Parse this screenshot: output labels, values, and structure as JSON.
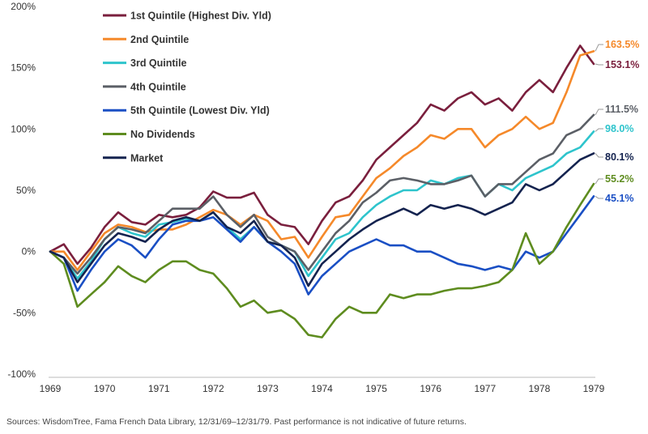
{
  "chart_data": {
    "type": "line",
    "x_ticks": [
      "1969",
      "1970",
      "1971",
      "1972",
      "1973",
      "1974",
      "1975",
      "1976",
      "1977",
      "1978",
      "1979"
    ],
    "y_ticks": [
      "200%",
      "150%",
      "100%",
      "50%",
      "0%",
      "-50%",
      "-100%"
    ],
    "ylim": [
      -100,
      200
    ],
    "xlim": [
      1969,
      1979
    ],
    "grid": false,
    "legend_position": "top-left",
    "series": [
      {
        "name": "1st Quintile (Highest Div. Yld)",
        "color": "#7a1f3d",
        "end_label": "153.1%",
        "points": [
          [
            1969.0,
            0
          ],
          [
            1969.25,
            6
          ],
          [
            1969.5,
            -10
          ],
          [
            1969.75,
            3
          ],
          [
            1970.0,
            20
          ],
          [
            1970.25,
            32
          ],
          [
            1970.5,
            24
          ],
          [
            1970.75,
            22
          ],
          [
            1971.0,
            30
          ],
          [
            1971.25,
            28
          ],
          [
            1971.5,
            30
          ],
          [
            1971.75,
            36
          ],
          [
            1972.0,
            49
          ],
          [
            1972.25,
            44
          ],
          [
            1972.5,
            44
          ],
          [
            1972.75,
            48
          ],
          [
            1973.0,
            30
          ],
          [
            1973.25,
            22
          ],
          [
            1973.5,
            20
          ],
          [
            1973.75,
            6
          ],
          [
            1974.0,
            25
          ],
          [
            1974.25,
            40
          ],
          [
            1974.5,
            45
          ],
          [
            1974.75,
            58
          ],
          [
            1975.0,
            75
          ],
          [
            1975.25,
            85
          ],
          [
            1975.5,
            95
          ],
          [
            1975.75,
            105
          ],
          [
            1976.0,
            120
          ],
          [
            1976.25,
            115
          ],
          [
            1976.5,
            125
          ],
          [
            1976.75,
            130
          ],
          [
            1977.0,
            120
          ],
          [
            1977.25,
            125
          ],
          [
            1977.5,
            115
          ],
          [
            1977.75,
            130
          ],
          [
            1978.0,
            140
          ],
          [
            1978.25,
            130
          ],
          [
            1978.5,
            150
          ],
          [
            1978.75,
            168
          ],
          [
            1979.0,
            153.1
          ]
        ]
      },
      {
        "name": "2nd Quintile",
        "color": "#f5892a",
        "end_label": "163.5%",
        "points": [
          [
            1969.0,
            0
          ],
          [
            1969.25,
            0
          ],
          [
            1969.5,
            -15
          ],
          [
            1969.75,
            0
          ],
          [
            1970.0,
            15
          ],
          [
            1970.25,
            22
          ],
          [
            1970.5,
            20
          ],
          [
            1970.75,
            16
          ],
          [
            1971.0,
            18
          ],
          [
            1971.25,
            18
          ],
          [
            1971.5,
            22
          ],
          [
            1971.75,
            28
          ],
          [
            1972.0,
            34
          ],
          [
            1972.25,
            30
          ],
          [
            1972.5,
            22
          ],
          [
            1972.75,
            30
          ],
          [
            1973.0,
            25
          ],
          [
            1973.25,
            10
          ],
          [
            1973.5,
            12
          ],
          [
            1973.75,
            -5
          ],
          [
            1974.0,
            12
          ],
          [
            1974.25,
            28
          ],
          [
            1974.5,
            30
          ],
          [
            1974.75,
            45
          ],
          [
            1975.0,
            60
          ],
          [
            1975.25,
            68
          ],
          [
            1975.5,
            78
          ],
          [
            1975.75,
            85
          ],
          [
            1976.0,
            95
          ],
          [
            1976.25,
            92
          ],
          [
            1976.5,
            100
          ],
          [
            1976.75,
            100
          ],
          [
            1977.0,
            85
          ],
          [
            1977.25,
            95
          ],
          [
            1977.5,
            100
          ],
          [
            1977.75,
            110
          ],
          [
            1978.0,
            100
          ],
          [
            1978.25,
            105
          ],
          [
            1978.5,
            130
          ],
          [
            1978.75,
            160
          ],
          [
            1979.0,
            163.5
          ]
        ]
      },
      {
        "name": "3rd Quintile",
        "color": "#2ec4cc",
        "end_label": "98.0%",
        "points": [
          [
            1969.0,
            0
          ],
          [
            1969.25,
            -5
          ],
          [
            1969.5,
            -22
          ],
          [
            1969.75,
            -8
          ],
          [
            1970.0,
            10
          ],
          [
            1970.25,
            20
          ],
          [
            1970.5,
            15
          ],
          [
            1970.75,
            12
          ],
          [
            1971.0,
            22
          ],
          [
            1971.25,
            24
          ],
          [
            1971.5,
            27
          ],
          [
            1971.75,
            25
          ],
          [
            1972.0,
            32
          ],
          [
            1972.25,
            20
          ],
          [
            1972.5,
            10
          ],
          [
            1972.75,
            20
          ],
          [
            1973.0,
            8
          ],
          [
            1973.25,
            5
          ],
          [
            1973.5,
            0
          ],
          [
            1973.75,
            -20
          ],
          [
            1974.0,
            -5
          ],
          [
            1974.25,
            10
          ],
          [
            1974.5,
            15
          ],
          [
            1974.75,
            28
          ],
          [
            1975.0,
            38
          ],
          [
            1975.25,
            45
          ],
          [
            1975.5,
            50
          ],
          [
            1975.75,
            50
          ],
          [
            1976.0,
            58
          ],
          [
            1976.25,
            55
          ],
          [
            1976.5,
            60
          ],
          [
            1976.75,
            62
          ],
          [
            1977.0,
            45
          ],
          [
            1977.25,
            55
          ],
          [
            1977.5,
            50
          ],
          [
            1977.75,
            60
          ],
          [
            1978.0,
            65
          ],
          [
            1978.25,
            70
          ],
          [
            1978.5,
            80
          ],
          [
            1978.75,
            85
          ],
          [
            1979.0,
            98.0
          ]
        ]
      },
      {
        "name": "4th Quintile",
        "color": "#5b5f66",
        "end_label": "111.5%",
        "points": [
          [
            1969.0,
            0
          ],
          [
            1969.25,
            -5
          ],
          [
            1969.5,
            -18
          ],
          [
            1969.75,
            -5
          ],
          [
            1970.0,
            10
          ],
          [
            1970.25,
            20
          ],
          [
            1970.5,
            18
          ],
          [
            1970.75,
            15
          ],
          [
            1971.0,
            25
          ],
          [
            1971.25,
            35
          ],
          [
            1971.5,
            35
          ],
          [
            1971.75,
            35
          ],
          [
            1972.0,
            45
          ],
          [
            1972.25,
            30
          ],
          [
            1972.5,
            20
          ],
          [
            1972.75,
            30
          ],
          [
            1973.0,
            12
          ],
          [
            1973.25,
            5
          ],
          [
            1973.5,
            0
          ],
          [
            1973.75,
            -15
          ],
          [
            1974.0,
            0
          ],
          [
            1974.25,
            15
          ],
          [
            1974.5,
            25
          ],
          [
            1974.75,
            40
          ],
          [
            1975.0,
            48
          ],
          [
            1975.25,
            58
          ],
          [
            1975.5,
            60
          ],
          [
            1975.75,
            58
          ],
          [
            1976.0,
            55
          ],
          [
            1976.25,
            55
          ],
          [
            1976.5,
            58
          ],
          [
            1976.75,
            62
          ],
          [
            1977.0,
            45
          ],
          [
            1977.25,
            55
          ],
          [
            1977.5,
            55
          ],
          [
            1977.75,
            65
          ],
          [
            1978.0,
            75
          ],
          [
            1978.25,
            80
          ],
          [
            1978.5,
            95
          ],
          [
            1978.75,
            100
          ],
          [
            1979.0,
            111.5
          ]
        ]
      },
      {
        "name": "5th Quintile (Lowest Div. Yld)",
        "color": "#1a4fc4",
        "end_label": "45.1%",
        "points": [
          [
            1969.0,
            0
          ],
          [
            1969.25,
            -5
          ],
          [
            1969.5,
            -32
          ],
          [
            1969.75,
            -15
          ],
          [
            1970.0,
            0
          ],
          [
            1970.25,
            10
          ],
          [
            1970.5,
            5
          ],
          [
            1970.75,
            -5
          ],
          [
            1971.0,
            10
          ],
          [
            1971.25,
            22
          ],
          [
            1971.5,
            25
          ],
          [
            1971.75,
            25
          ],
          [
            1972.0,
            28
          ],
          [
            1972.25,
            18
          ],
          [
            1972.5,
            8
          ],
          [
            1972.75,
            20
          ],
          [
            1973.0,
            8
          ],
          [
            1973.25,
            0
          ],
          [
            1973.5,
            -10
          ],
          [
            1973.75,
            -35
          ],
          [
            1974.0,
            -20
          ],
          [
            1974.25,
            -10
          ],
          [
            1974.5,
            0
          ],
          [
            1974.75,
            5
          ],
          [
            1975.0,
            10
          ],
          [
            1975.25,
            5
          ],
          [
            1975.5,
            5
          ],
          [
            1975.75,
            0
          ],
          [
            1976.0,
            0
          ],
          [
            1976.25,
            -5
          ],
          [
            1976.5,
            -10
          ],
          [
            1976.75,
            -12
          ],
          [
            1977.0,
            -15
          ],
          [
            1977.25,
            -12
          ],
          [
            1977.5,
            -15
          ],
          [
            1977.75,
            0
          ],
          [
            1978.0,
            -5
          ],
          [
            1978.25,
            0
          ],
          [
            1978.5,
            15
          ],
          [
            1978.75,
            30
          ],
          [
            1979.0,
            45.1
          ]
        ]
      },
      {
        "name": "No Dividends",
        "color": "#5e8c1f",
        "end_label": "55.2%",
        "points": [
          [
            1969.0,
            0
          ],
          [
            1969.25,
            -10
          ],
          [
            1969.5,
            -45
          ],
          [
            1969.75,
            -35
          ],
          [
            1970.0,
            -25
          ],
          [
            1970.25,
            -12
          ],
          [
            1970.5,
            -20
          ],
          [
            1970.75,
            -25
          ],
          [
            1971.0,
            -15
          ],
          [
            1971.25,
            -8
          ],
          [
            1971.5,
            -8
          ],
          [
            1971.75,
            -15
          ],
          [
            1972.0,
            -18
          ],
          [
            1972.25,
            -30
          ],
          [
            1972.5,
            -45
          ],
          [
            1972.75,
            -40
          ],
          [
            1973.0,
            -50
          ],
          [
            1973.25,
            -48
          ],
          [
            1973.5,
            -55
          ],
          [
            1973.75,
            -68
          ],
          [
            1974.0,
            -70
          ],
          [
            1974.25,
            -55
          ],
          [
            1974.5,
            -45
          ],
          [
            1974.75,
            -50
          ],
          [
            1975.0,
            -50
          ],
          [
            1975.25,
            -35
          ],
          [
            1975.5,
            -38
          ],
          [
            1975.75,
            -35
          ],
          [
            1976.0,
            -35
          ],
          [
            1976.25,
            -32
          ],
          [
            1976.5,
            -30
          ],
          [
            1976.75,
            -30
          ],
          [
            1977.0,
            -28
          ],
          [
            1977.25,
            -25
          ],
          [
            1977.5,
            -15
          ],
          [
            1977.75,
            15
          ],
          [
            1978.0,
            -10
          ],
          [
            1978.25,
            0
          ],
          [
            1978.5,
            20
          ],
          [
            1978.75,
            38
          ],
          [
            1979.0,
            55.2
          ]
        ]
      },
      {
        "name": "Market",
        "color": "#14234f",
        "end_label": "80.1%",
        "points": [
          [
            1969.0,
            0
          ],
          [
            1969.25,
            -5
          ],
          [
            1969.5,
            -25
          ],
          [
            1969.75,
            -10
          ],
          [
            1970.0,
            5
          ],
          [
            1970.25,
            15
          ],
          [
            1970.5,
            12
          ],
          [
            1970.75,
            8
          ],
          [
            1971.0,
            18
          ],
          [
            1971.25,
            25
          ],
          [
            1971.5,
            28
          ],
          [
            1971.75,
            25
          ],
          [
            1972.0,
            32
          ],
          [
            1972.25,
            20
          ],
          [
            1972.5,
            15
          ],
          [
            1972.75,
            25
          ],
          [
            1973.0,
            8
          ],
          [
            1973.25,
            5
          ],
          [
            1973.5,
            -5
          ],
          [
            1973.75,
            -28
          ],
          [
            1974.0,
            -10
          ],
          [
            1974.25,
            0
          ],
          [
            1974.5,
            10
          ],
          [
            1974.75,
            18
          ],
          [
            1975.0,
            25
          ],
          [
            1975.25,
            30
          ],
          [
            1975.5,
            35
          ],
          [
            1975.75,
            30
          ],
          [
            1976.0,
            38
          ],
          [
            1976.25,
            35
          ],
          [
            1976.5,
            38
          ],
          [
            1976.75,
            35
          ],
          [
            1977.0,
            30
          ],
          [
            1977.25,
            35
          ],
          [
            1977.5,
            40
          ],
          [
            1977.75,
            55
          ],
          [
            1978.0,
            50
          ],
          [
            1978.25,
            55
          ],
          [
            1978.5,
            65
          ],
          [
            1978.75,
            75
          ],
          [
            1979.0,
            80.1
          ]
        ]
      }
    ]
  },
  "source_note": "Sources: WisdomTree, Fama French Data Library, 12/31/69–12/31/79. Past performance is not indicative of future returns."
}
